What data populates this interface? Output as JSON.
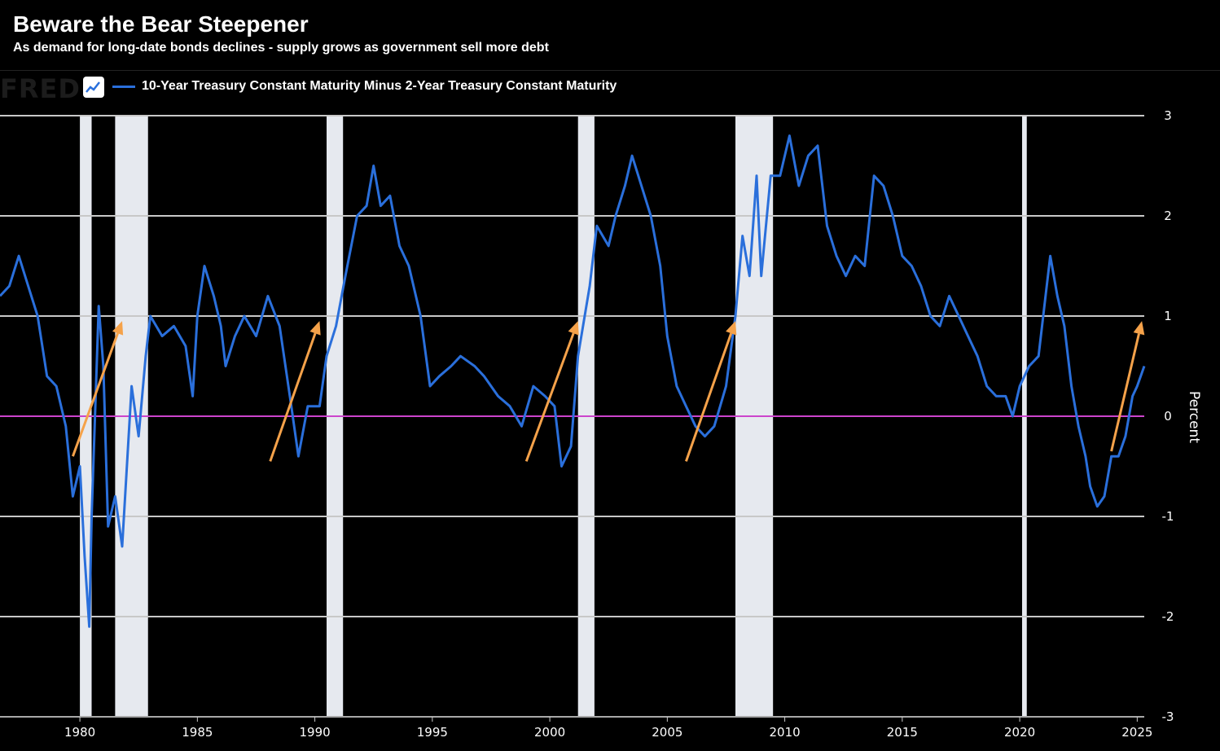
{
  "header": {
    "title": "Beware the Bear Steepener",
    "subtitle": "As demand for long-date bonds declines - supply grows as government sell more debt"
  },
  "branding": {
    "logo_text": "FRED",
    "logo_icon": "chart-line-icon"
  },
  "colors": {
    "series": "#2a6fdb",
    "zero_line": "#cc44cc",
    "recession": "#e6e9ef",
    "arrows": "#f5a24a",
    "grid": "#c8c8c8",
    "background": "#000000"
  },
  "chart_data": {
    "type": "line",
    "xlabel": "",
    "ylabel": "Percent",
    "xlim": [
      1976.6,
      2025.3
    ],
    "ylim": [
      -3,
      3
    ],
    "grid": true,
    "x_ticks": [
      1980,
      1985,
      1990,
      1995,
      2000,
      2005,
      2010,
      2015,
      2020,
      2025
    ],
    "y_ticks": [
      3,
      2,
      1,
      0,
      -1,
      -2,
      -3
    ],
    "legend_position": "top-left",
    "reference_line": {
      "y": 0
    },
    "series": [
      {
        "name": "10-Year Treasury Constant Maturity Minus 2-Year Treasury Constant Maturity",
        "points": [
          [
            1976.6,
            1.2
          ],
          [
            1977.0,
            1.3
          ],
          [
            1977.4,
            1.6
          ],
          [
            1977.8,
            1.3
          ],
          [
            1978.2,
            1.0
          ],
          [
            1978.6,
            0.4
          ],
          [
            1979.0,
            0.3
          ],
          [
            1979.4,
            -0.1
          ],
          [
            1979.7,
            -0.8
          ],
          [
            1980.0,
            -0.5
          ],
          [
            1980.2,
            -1.4
          ],
          [
            1980.4,
            -2.1
          ],
          [
            1980.5,
            -1.0
          ],
          [
            1980.8,
            1.1
          ],
          [
            1981.0,
            0.5
          ],
          [
            1981.2,
            -1.1
          ],
          [
            1981.5,
            -0.8
          ],
          [
            1981.8,
            -1.3
          ],
          [
            1982.2,
            0.3
          ],
          [
            1982.5,
            -0.2
          ],
          [
            1982.8,
            0.6
          ],
          [
            1983.0,
            1.0
          ],
          [
            1983.5,
            0.8
          ],
          [
            1984.0,
            0.9
          ],
          [
            1984.5,
            0.7
          ],
          [
            1984.8,
            0.2
          ],
          [
            1985.0,
            1.0
          ],
          [
            1985.3,
            1.5
          ],
          [
            1985.7,
            1.2
          ],
          [
            1986.0,
            0.9
          ],
          [
            1986.2,
            0.5
          ],
          [
            1986.6,
            0.8
          ],
          [
            1987.0,
            1.0
          ],
          [
            1987.5,
            0.8
          ],
          [
            1988.0,
            1.2
          ],
          [
            1988.5,
            0.9
          ],
          [
            1989.0,
            0.1
          ],
          [
            1989.3,
            -0.4
          ],
          [
            1989.7,
            0.1
          ],
          [
            1990.2,
            0.1
          ],
          [
            1990.5,
            0.6
          ],
          [
            1990.9,
            0.9
          ],
          [
            1991.3,
            1.4
          ],
          [
            1991.8,
            2.0
          ],
          [
            1992.2,
            2.1
          ],
          [
            1992.5,
            2.5
          ],
          [
            1992.8,
            2.1
          ],
          [
            1993.2,
            2.2
          ],
          [
            1993.6,
            1.7
          ],
          [
            1994.0,
            1.5
          ],
          [
            1994.5,
            1.0
          ],
          [
            1994.9,
            0.3
          ],
          [
            1995.3,
            0.4
          ],
          [
            1995.8,
            0.5
          ],
          [
            1996.2,
            0.6
          ],
          [
            1996.8,
            0.5
          ],
          [
            1997.2,
            0.4
          ],
          [
            1997.8,
            0.2
          ],
          [
            1998.3,
            0.1
          ],
          [
            1998.8,
            -0.1
          ],
          [
            1999.3,
            0.3
          ],
          [
            1999.8,
            0.2
          ],
          [
            2000.2,
            0.1
          ],
          [
            2000.5,
            -0.5
          ],
          [
            2000.9,
            -0.3
          ],
          [
            2001.2,
            0.6
          ],
          [
            2001.7,
            1.3
          ],
          [
            2002.0,
            1.9
          ],
          [
            2002.5,
            1.7
          ],
          [
            2002.8,
            2.0
          ],
          [
            2003.2,
            2.3
          ],
          [
            2003.5,
            2.6
          ],
          [
            2003.9,
            2.3
          ],
          [
            2004.3,
            2.0
          ],
          [
            2004.7,
            1.5
          ],
          [
            2005.0,
            0.8
          ],
          [
            2005.4,
            0.3
          ],
          [
            2005.8,
            0.1
          ],
          [
            2006.2,
            -0.1
          ],
          [
            2006.6,
            -0.2
          ],
          [
            2007.0,
            -0.1
          ],
          [
            2007.5,
            0.3
          ],
          [
            2007.9,
            1.0
          ],
          [
            2008.2,
            1.8
          ],
          [
            2008.5,
            1.4
          ],
          [
            2008.8,
            2.4
          ],
          [
            2009.0,
            1.4
          ],
          [
            2009.4,
            2.4
          ],
          [
            2009.8,
            2.4
          ],
          [
            2010.2,
            2.8
          ],
          [
            2010.6,
            2.3
          ],
          [
            2011.0,
            2.6
          ],
          [
            2011.4,
            2.7
          ],
          [
            2011.8,
            1.9
          ],
          [
            2012.2,
            1.6
          ],
          [
            2012.6,
            1.4
          ],
          [
            2013.0,
            1.6
          ],
          [
            2013.4,
            1.5
          ],
          [
            2013.8,
            2.4
          ],
          [
            2014.2,
            2.3
          ],
          [
            2014.6,
            2.0
          ],
          [
            2015.0,
            1.6
          ],
          [
            2015.4,
            1.5
          ],
          [
            2015.8,
            1.3
          ],
          [
            2016.2,
            1.0
          ],
          [
            2016.6,
            0.9
          ],
          [
            2017.0,
            1.2
          ],
          [
            2017.4,
            1.0
          ],
          [
            2017.8,
            0.8
          ],
          [
            2018.2,
            0.6
          ],
          [
            2018.6,
            0.3
          ],
          [
            2019.0,
            0.2
          ],
          [
            2019.4,
            0.2
          ],
          [
            2019.7,
            0.0
          ],
          [
            2020.0,
            0.3
          ],
          [
            2020.4,
            0.5
          ],
          [
            2020.8,
            0.6
          ],
          [
            2021.1,
            1.2
          ],
          [
            2021.3,
            1.6
          ],
          [
            2021.6,
            1.2
          ],
          [
            2021.9,
            0.9
          ],
          [
            2022.2,
            0.3
          ],
          [
            2022.5,
            -0.1
          ],
          [
            2022.8,
            -0.4
          ],
          [
            2023.0,
            -0.7
          ],
          [
            2023.3,
            -0.9
          ],
          [
            2023.6,
            -0.8
          ],
          [
            2023.9,
            -0.4
          ],
          [
            2024.2,
            -0.4
          ],
          [
            2024.5,
            -0.2
          ],
          [
            2024.8,
            0.2
          ],
          [
            2025.0,
            0.3
          ],
          [
            2025.3,
            0.5
          ]
        ]
      }
    ],
    "recessions": [
      [
        1980.0,
        1980.5
      ],
      [
        1981.5,
        1982.9
      ],
      [
        1990.5,
        1991.2
      ],
      [
        2001.2,
        2001.9
      ],
      [
        2007.9,
        2009.5
      ],
      [
        2020.1,
        2020.3
      ]
    ],
    "annotations": {
      "arrows": [
        [
          [
            1979.7,
            -0.4
          ],
          [
            1981.8,
            0.95
          ]
        ],
        [
          [
            1988.1,
            -0.45
          ],
          [
            1990.2,
            0.95
          ]
        ],
        [
          [
            1999.0,
            -0.45
          ],
          [
            2001.2,
            0.95
          ]
        ],
        [
          [
            2005.8,
            -0.45
          ],
          [
            2007.9,
            0.95
          ]
        ],
        [
          [
            2023.9,
            -0.35
          ],
          [
            2025.2,
            0.95
          ]
        ]
      ]
    }
  }
}
